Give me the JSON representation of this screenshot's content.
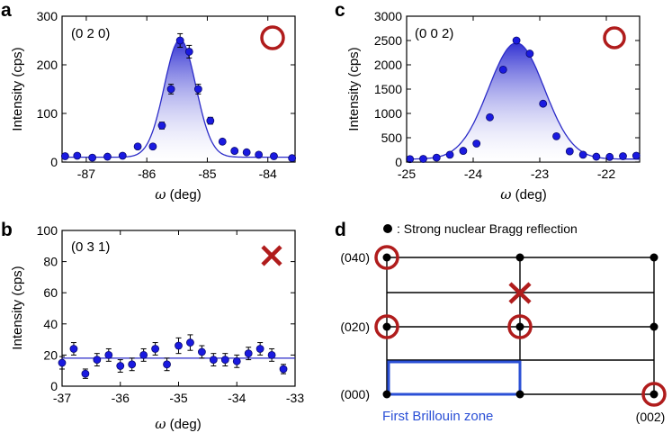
{
  "panels": {
    "a": "a",
    "b": "b",
    "c": "c",
    "d": "d"
  },
  "colors": {
    "marker": "#1a1ae0",
    "curve": "#2b2bc8",
    "fill_top": "#3a3ad8",
    "fill_bottom": "#ffffff",
    "circle": "#b01c1c",
    "cross": "#b01c1c",
    "bz": "#2b50d6"
  },
  "chart_data": [
    {
      "panel": "a",
      "type": "scatter",
      "reflection": "(0 2 0)",
      "status": "observed",
      "xlabel_symbol": "ω",
      "xlabel_unit": " (deg)",
      "ylabel": "Intensity (cps)",
      "xlim": [
        -87.4,
        -83.55
      ],
      "ylim": [
        0,
        300
      ],
      "xticks": [
        -87,
        -86,
        -85,
        -84
      ],
      "yticks": [
        0,
        100,
        200,
        300
      ],
      "fit": {
        "A": 242,
        "center": -85.45,
        "sigma": 0.26,
        "baseline": 10
      },
      "x": [
        -87.35,
        -87.15,
        -86.9,
        -86.65,
        -86.4,
        -86.15,
        -85.9,
        -85.75,
        -85.6,
        -85.45,
        -85.3,
        -85.15,
        -84.95,
        -84.75,
        -84.55,
        -84.35,
        -84.15,
        -83.9,
        -83.6
      ],
      "y": [
        12,
        13,
        9,
        11,
        13,
        32,
        32,
        75,
        150,
        250,
        227,
        150,
        85,
        42,
        23,
        20,
        15,
        12,
        8
      ],
      "err": [
        3,
        3,
        3,
        3,
        3,
        4,
        4,
        7,
        10,
        14,
        13,
        10,
        7,
        5,
        4,
        3,
        3,
        3,
        3
      ]
    },
    {
      "panel": "b",
      "type": "scatter",
      "reflection": "(0 3 1)",
      "status": "absent",
      "xlabel_symbol": "ω",
      "xlabel_unit": " (deg)",
      "ylabel": "Intensity (cps)",
      "xlim": [
        -37,
        -33
      ],
      "ylim": [
        0,
        100
      ],
      "xticks": [
        -37,
        -36,
        -35,
        -34,
        -33
      ],
      "yticks": [
        0,
        20,
        40,
        60,
        80,
        100
      ],
      "baseline": 18,
      "x": [
        -37.0,
        -36.8,
        -36.6,
        -36.4,
        -36.2,
        -36.0,
        -35.8,
        -35.6,
        -35.4,
        -35.2,
        -35.0,
        -34.8,
        -34.6,
        -34.4,
        -34.2,
        -34.0,
        -33.8,
        -33.6,
        -33.4,
        -33.2
      ],
      "y": [
        15,
        24,
        8,
        17,
        20,
        13,
        14,
        20,
        24,
        14,
        26,
        28,
        22,
        17,
        17,
        16,
        21,
        24,
        20,
        11
      ],
      "err": [
        4,
        4,
        3,
        4,
        4,
        4,
        4,
        4,
        4,
        4,
        5,
        5,
        4,
        4,
        4,
        4,
        4,
        4,
        4,
        3
      ]
    },
    {
      "panel": "c",
      "type": "scatter",
      "reflection": "(0 0 2)",
      "status": "observed",
      "xlabel_symbol": "ω",
      "xlabel_unit": " (deg)",
      "ylabel": "Intensity (cps)",
      "xlim": [
        -25,
        -21.5
      ],
      "ylim": [
        0,
        3000
      ],
      "xticks": [
        -25,
        -24,
        -23,
        -22
      ],
      "yticks": [
        0,
        500,
        1000,
        1500,
        2000,
        2500,
        3000
      ],
      "fit": {
        "A": 2390,
        "center": -23.35,
        "sigma": 0.42,
        "baseline": 60
      },
      "x": [
        -24.95,
        -24.75,
        -24.55,
        -24.35,
        -24.15,
        -23.95,
        -23.75,
        -23.55,
        -23.35,
        -23.15,
        -22.95,
        -22.75,
        -22.55,
        -22.35,
        -22.15,
        -21.95,
        -21.75,
        -21.55
      ],
      "y": [
        60,
        65,
        90,
        150,
        230,
        380,
        920,
        1900,
        2500,
        2230,
        1200,
        530,
        220,
        150,
        110,
        105,
        120,
        130
      ],
      "err": [
        0,
        0,
        0,
        0,
        0,
        0,
        0,
        0,
        0,
        0,
        0,
        0,
        0,
        0,
        0,
        0,
        0,
        0
      ]
    }
  ],
  "schematic": {
    "legend": ": Strong nuclear Bragg reflection",
    "labels": {
      "l040": "(040)",
      "l020": "(020)",
      "l000": "(000)",
      "l002": "(002)"
    },
    "bz_label": "First Brillouin zone"
  }
}
